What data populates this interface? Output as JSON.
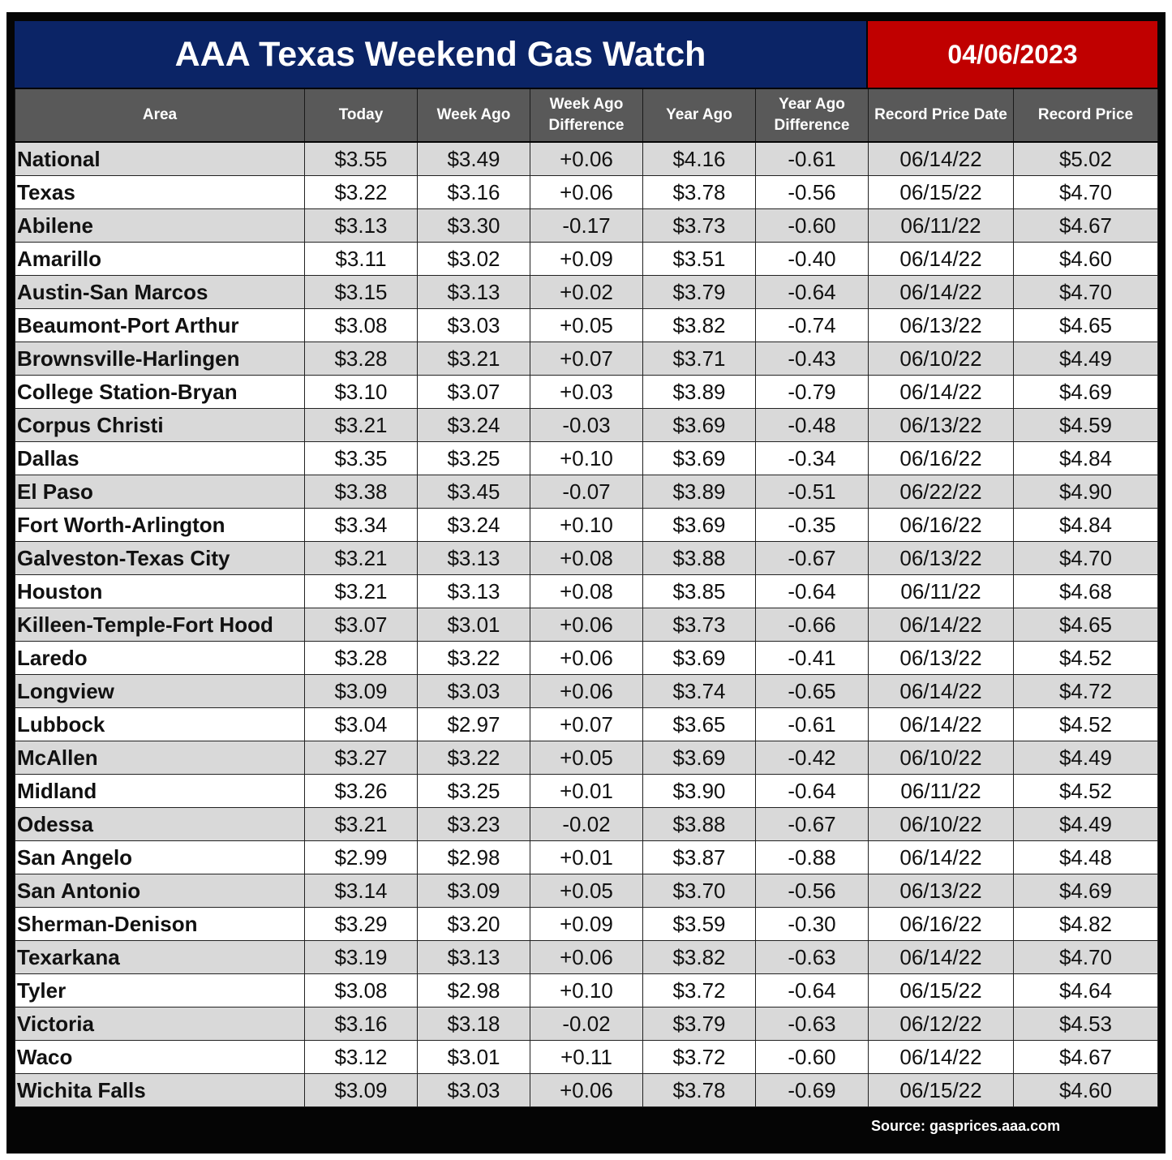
{
  "header": {
    "title": "AAA Texas Weekend Gas Watch",
    "date": "04/06/2023"
  },
  "table": {
    "columns": [
      "Area",
      "Today",
      "Week Ago",
      "Week Ago Difference",
      "Year Ago",
      "Year Ago Difference",
      "Record Price Date",
      "Record Price"
    ],
    "rows": [
      [
        "National",
        "$3.55",
        "$3.49",
        "+0.06",
        "$4.16",
        "-0.61",
        "06/14/22",
        "$5.02"
      ],
      [
        "Texas",
        "$3.22",
        "$3.16",
        "+0.06",
        "$3.78",
        "-0.56",
        "06/15/22",
        "$4.70"
      ],
      [
        "Abilene",
        "$3.13",
        "$3.30",
        "-0.17",
        "$3.73",
        "-0.60",
        "06/11/22",
        "$4.67"
      ],
      [
        "Amarillo",
        "$3.11",
        "$3.02",
        "+0.09",
        "$3.51",
        "-0.40",
        "06/14/22",
        "$4.60"
      ],
      [
        "Austin-San Marcos",
        "$3.15",
        "$3.13",
        "+0.02",
        "$3.79",
        "-0.64",
        "06/14/22",
        "$4.70"
      ],
      [
        "Beaumont-Port Arthur",
        "$3.08",
        "$3.03",
        "+0.05",
        "$3.82",
        "-0.74",
        "06/13/22",
        "$4.65"
      ],
      [
        "Brownsville-Harlingen",
        "$3.28",
        "$3.21",
        "+0.07",
        "$3.71",
        "-0.43",
        "06/10/22",
        "$4.49"
      ],
      [
        "College Station-Bryan",
        "$3.10",
        "$3.07",
        "+0.03",
        "$3.89",
        "-0.79",
        "06/14/22",
        "$4.69"
      ],
      [
        "Corpus Christi",
        "$3.21",
        "$3.24",
        "-0.03",
        "$3.69",
        "-0.48",
        "06/13/22",
        "$4.59"
      ],
      [
        "Dallas",
        "$3.35",
        "$3.25",
        "+0.10",
        "$3.69",
        "-0.34",
        "06/16/22",
        "$4.84"
      ],
      [
        "El Paso",
        "$3.38",
        "$3.45",
        "-0.07",
        "$3.89",
        "-0.51",
        "06/22/22",
        "$4.90"
      ],
      [
        "Fort Worth-Arlington",
        "$3.34",
        "$3.24",
        "+0.10",
        "$3.69",
        "-0.35",
        "06/16/22",
        "$4.84"
      ],
      [
        "Galveston-Texas City",
        "$3.21",
        "$3.13",
        "+0.08",
        "$3.88",
        "-0.67",
        "06/13/22",
        "$4.70"
      ],
      [
        "Houston",
        "$3.21",
        "$3.13",
        "+0.08",
        "$3.85",
        "-0.64",
        "06/11/22",
        "$4.68"
      ],
      [
        "Killeen-Temple-Fort Hood",
        "$3.07",
        "$3.01",
        "+0.06",
        "$3.73",
        "-0.66",
        "06/14/22",
        "$4.65"
      ],
      [
        "Laredo",
        "$3.28",
        "$3.22",
        "+0.06",
        "$3.69",
        "-0.41",
        "06/13/22",
        "$4.52"
      ],
      [
        "Longview",
        "$3.09",
        "$3.03",
        "+0.06",
        "$3.74",
        "-0.65",
        "06/14/22",
        "$4.72"
      ],
      [
        "Lubbock",
        "$3.04",
        "$2.97",
        "+0.07",
        "$3.65",
        "-0.61",
        "06/14/22",
        "$4.52"
      ],
      [
        "McAllen",
        "$3.27",
        "$3.22",
        "+0.05",
        "$3.69",
        "-0.42",
        "06/10/22",
        "$4.49"
      ],
      [
        "Midland",
        "$3.26",
        "$3.25",
        "+0.01",
        "$3.90",
        "-0.64",
        "06/11/22",
        "$4.52"
      ],
      [
        "Odessa",
        "$3.21",
        "$3.23",
        "-0.02",
        "$3.88",
        "-0.67",
        "06/10/22",
        "$4.49"
      ],
      [
        "San Angelo",
        "$2.99",
        "$2.98",
        "+0.01",
        "$3.87",
        "-0.88",
        "06/14/22",
        "$4.48"
      ],
      [
        "San Antonio",
        "$3.14",
        "$3.09",
        "+0.05",
        "$3.70",
        "-0.56",
        "06/13/22",
        "$4.69"
      ],
      [
        "Sherman-Denison",
        "$3.29",
        "$3.20",
        "+0.09",
        "$3.59",
        "-0.30",
        "06/16/22",
        "$4.82"
      ],
      [
        "Texarkana",
        "$3.19",
        "$3.13",
        "+0.06",
        "$3.82",
        "-0.63",
        "06/14/22",
        "$4.70"
      ],
      [
        "Tyler",
        "$3.08",
        "$2.98",
        "+0.10",
        "$3.72",
        "-0.64",
        "06/15/22",
        "$4.64"
      ],
      [
        "Victoria",
        "$3.16",
        "$3.18",
        "-0.02",
        "$3.79",
        "-0.63",
        "06/12/22",
        "$4.53"
      ],
      [
        "Waco",
        "$3.12",
        "$3.01",
        "+0.11",
        "$3.72",
        "-0.60",
        "06/14/22",
        "$4.67"
      ],
      [
        "Wichita Falls",
        "$3.09",
        "$3.03",
        "+0.06",
        "$3.78",
        "-0.69",
        "06/15/22",
        "$4.60"
      ]
    ]
  },
  "footer": {
    "source": "Source: gasprices.aaa.com"
  },
  "colors": {
    "title_bg": "#0b2466",
    "date_bg": "#c00000",
    "header_bg": "#595959",
    "shaded_row": "#d9d9d9",
    "frame": "#050505"
  }
}
